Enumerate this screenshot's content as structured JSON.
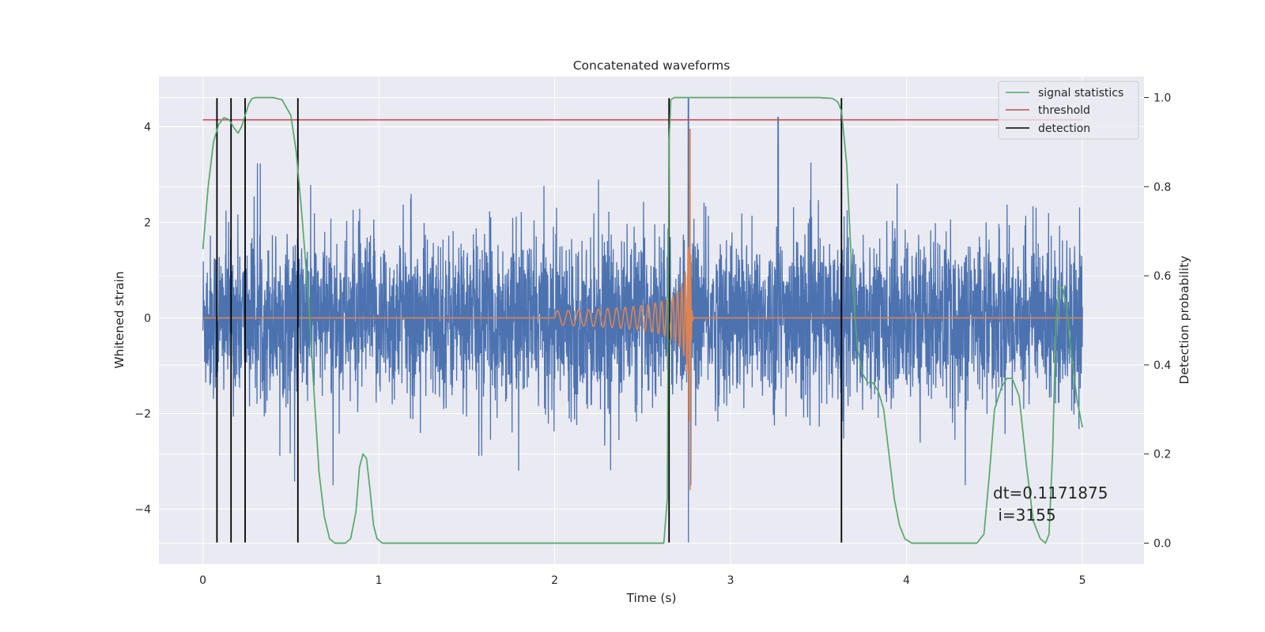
{
  "chart_data": {
    "type": "line",
    "title": "Concatenated waveforms",
    "xlabel": "Time (s)",
    "ylabel": "Whitened strain",
    "y2label": "Detection probability",
    "xlim": [
      -0.25,
      5.35
    ],
    "ylim": [
      -5.15,
      5.05
    ],
    "y2lim": [
      -0.047,
      1.047
    ],
    "xticks": [
      0,
      1,
      2,
      3,
      4,
      5
    ],
    "yticks": [
      -4,
      -2,
      0,
      2,
      4
    ],
    "y2ticks": [
      0.0,
      0.2,
      0.4,
      0.6,
      0.8,
      1.0
    ],
    "y2tick_labels": [
      "0.0",
      "0.2",
      "0.4",
      "0.6",
      "0.8",
      "1.0"
    ],
    "ytick_labels": [
      "−4",
      "−2",
      "0",
      "2",
      "4"
    ],
    "grid": true,
    "legend_position": "top-right",
    "colors": {
      "background": "#eaeaf2",
      "grid": "#ffffff",
      "strain": "#4c72b0",
      "template": "#dd8452",
      "signal_statistics": "#55a868",
      "threshold": "#c44e52",
      "detection": "#000000"
    },
    "series": [
      {
        "name": "signal statistics",
        "axis": "right",
        "x": [
          0.0,
          0.03,
          0.06,
          0.09,
          0.12,
          0.15,
          0.18,
          0.2,
          0.22,
          0.24,
          0.26,
          0.28,
          0.3,
          0.33,
          0.36,
          0.4,
          0.45,
          0.5,
          0.53,
          0.56,
          0.6,
          0.63,
          0.66,
          0.69,
          0.72,
          0.75,
          0.78,
          0.81,
          0.84,
          0.87,
          0.89,
          0.91,
          0.93,
          0.95,
          0.97,
          0.99,
          1.02,
          1.05,
          1.1,
          1.3,
          1.6,
          2.0,
          2.3,
          2.5,
          2.62,
          2.64,
          2.65,
          2.66,
          2.68,
          2.72,
          2.8,
          3.0,
          3.3,
          3.5,
          3.58,
          3.61,
          3.63,
          3.66,
          3.69,
          3.72,
          3.75,
          3.78,
          3.81,
          3.84,
          3.87,
          3.9,
          3.93,
          3.96,
          3.99,
          4.03,
          4.1,
          4.2,
          4.3,
          4.4,
          4.44,
          4.47,
          4.5,
          4.54,
          4.57,
          4.6,
          4.64,
          4.68,
          4.72,
          4.76,
          4.79,
          4.81,
          4.83,
          4.85,
          4.87,
          4.89,
          4.91,
          4.93,
          4.95,
          4.97,
          5.0
        ],
        "values": [
          0.66,
          0.8,
          0.9,
          0.94,
          0.955,
          0.95,
          0.93,
          0.92,
          0.935,
          0.96,
          0.985,
          0.998,
          1.0,
          1.0,
          1.0,
          1.0,
          0.995,
          0.96,
          0.88,
          0.75,
          0.55,
          0.35,
          0.16,
          0.06,
          0.01,
          0.0,
          0.0,
          0.0,
          0.01,
          0.07,
          0.17,
          0.2,
          0.19,
          0.12,
          0.04,
          0.01,
          0.0,
          0.0,
          0.0,
          0.0,
          0.0,
          0.0,
          0.0,
          0.0,
          0.0,
          0.1,
          0.9,
          0.995,
          1.0,
          1.0,
          1.0,
          1.0,
          1.0,
          1.0,
          0.998,
          0.99,
          0.97,
          0.85,
          0.6,
          0.44,
          0.38,
          0.36,
          0.36,
          0.34,
          0.3,
          0.2,
          0.1,
          0.04,
          0.01,
          0.0,
          0.0,
          0.0,
          0.0,
          0.0,
          0.02,
          0.15,
          0.3,
          0.35,
          0.37,
          0.37,
          0.33,
          0.18,
          0.05,
          0.01,
          0.0,
          0.02,
          0.2,
          0.5,
          0.58,
          0.57,
          0.53,
          0.45,
          0.38,
          0.32,
          0.26
        ]
      },
      {
        "name": "threshold",
        "axis": "right",
        "x": [
          0,
          5
        ],
        "values": [
          0.95,
          0.95
        ]
      },
      {
        "name": "detection",
        "axis": "left",
        "vlines_x": [
          0.08,
          0.16,
          0.24,
          0.54,
          2.65,
          3.63
        ],
        "vline_ymin": -4.7,
        "vline_ymax": 4.6
      }
    ],
    "strain_noise": {
      "x_range": [
        0,
        5
      ],
      "typical_band": [
        -1.0,
        1.0
      ],
      "peak_extent": [
        -3.5,
        3.5
      ],
      "spike_x": 2.76,
      "spike_range": [
        -4.7,
        4.6
      ],
      "spike2_x": 3.27,
      "spike2_max": 4.2
    },
    "template_chirp": {
      "start_x": 2.0,
      "merger_x": 2.77,
      "start_amp": 0.15,
      "peak_range": [
        -3.6,
        4.0
      ]
    },
    "annotation": {
      "line1": "dt=0.1171875",
      "line2": " i=3155"
    }
  }
}
